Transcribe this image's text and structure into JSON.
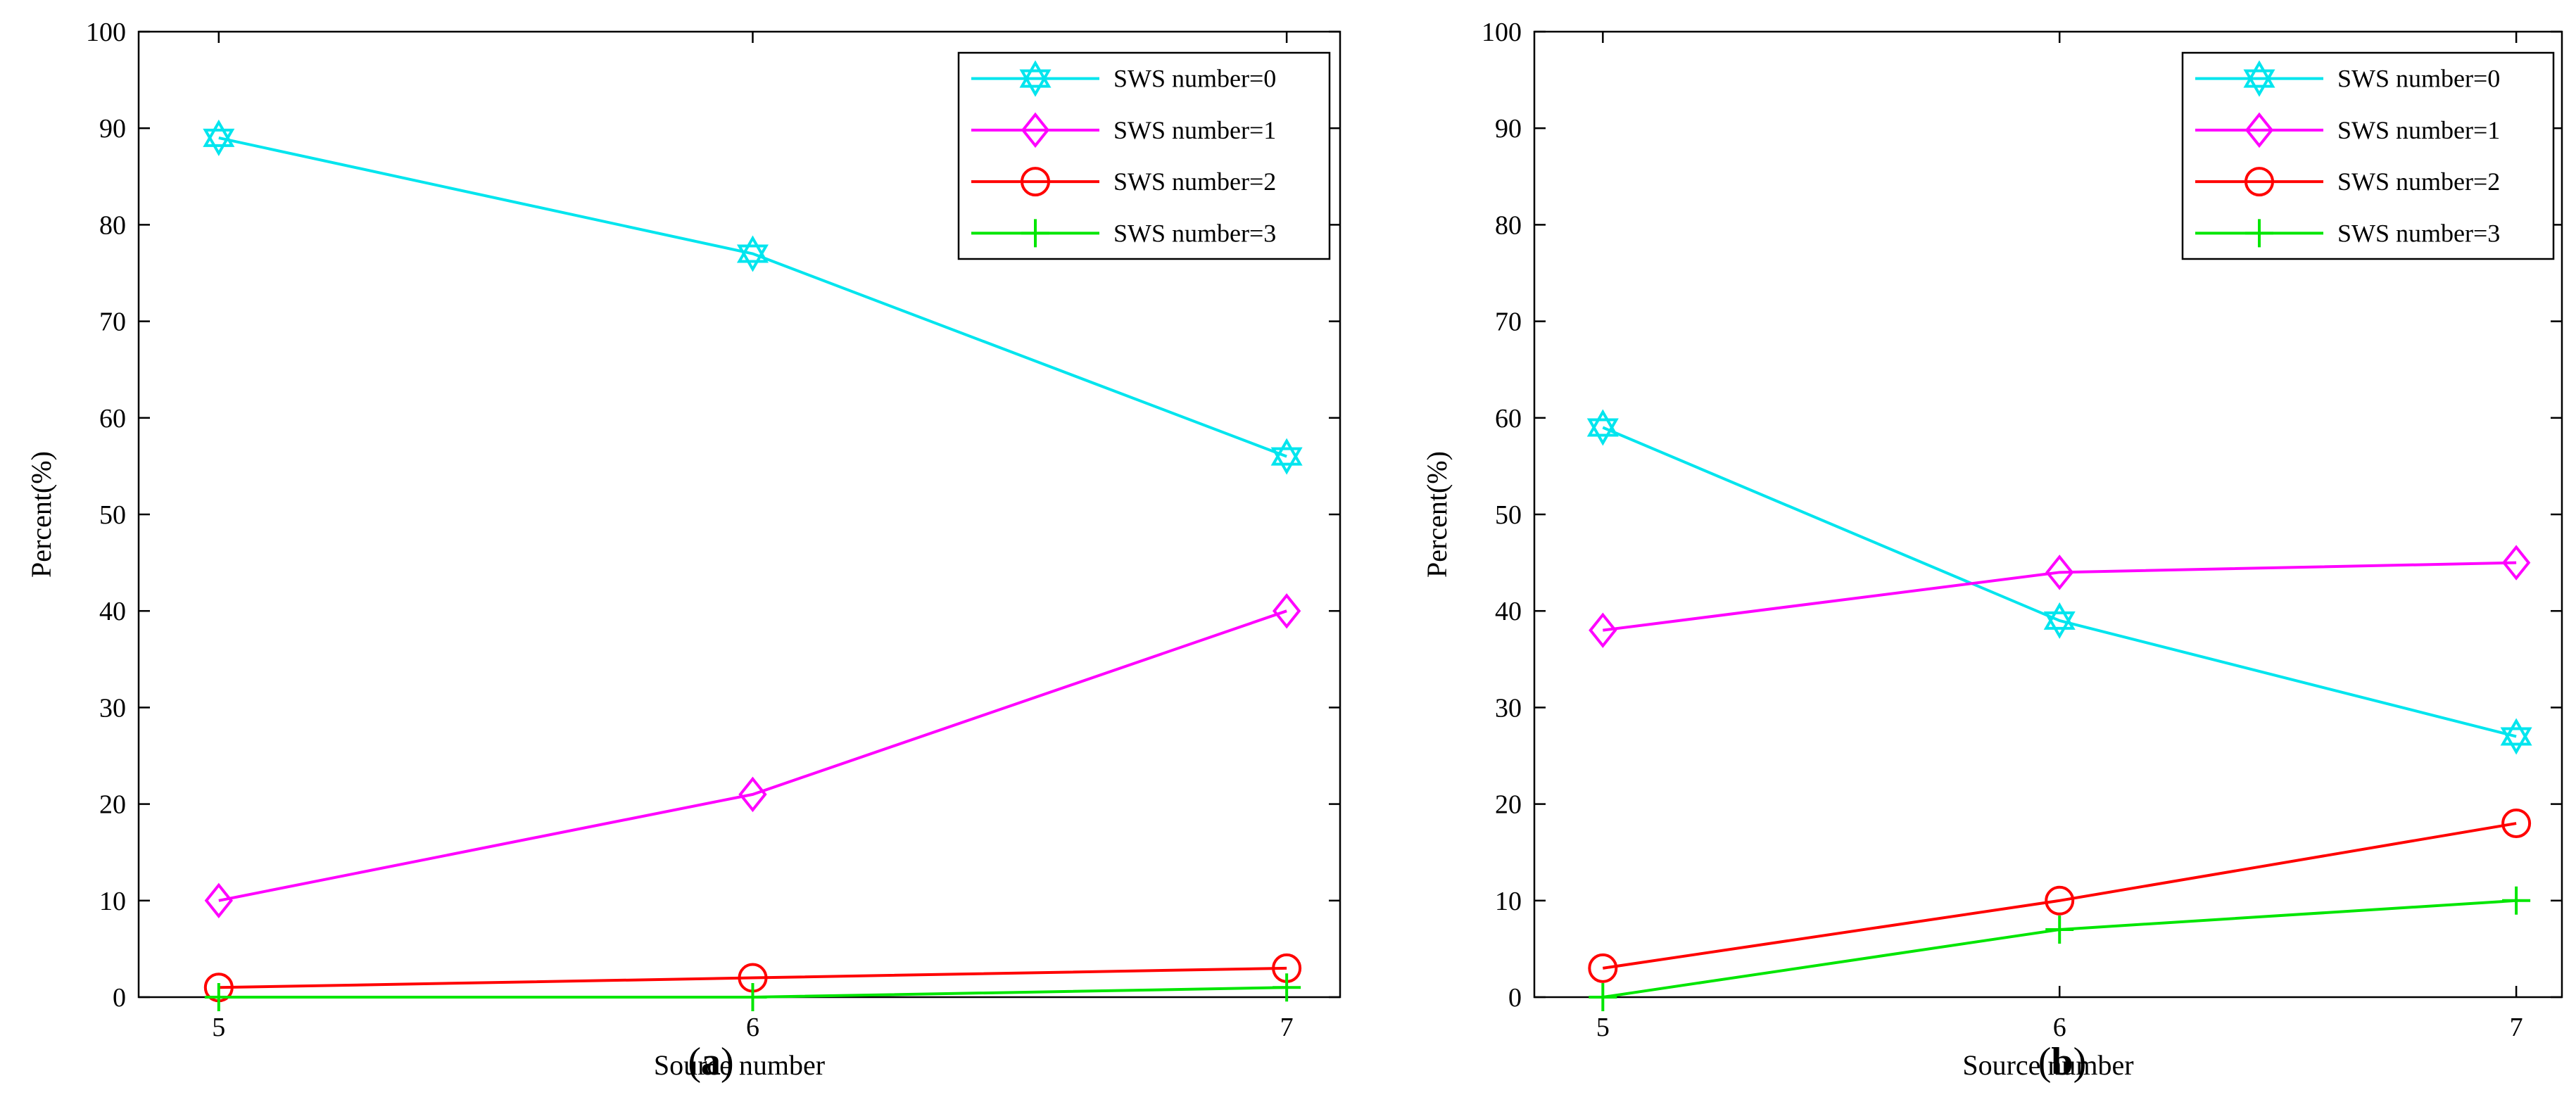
{
  "chart_data": [
    {
      "type": "line",
      "panel_label": "a",
      "xlabel": "Source number",
      "ylabel": "Percent(%)",
      "x": [
        5,
        6,
        7
      ],
      "xlim": [
        4.85,
        7.1
      ],
      "ylim": [
        0,
        100
      ],
      "yticks": [
        0,
        10,
        20,
        30,
        40,
        50,
        60,
        70,
        80,
        90,
        100
      ],
      "legend_position": "top-right",
      "series": [
        {
          "name": "SWS number=0",
          "color": "#00e5ee",
          "marker": "hexagram",
          "values": [
            89,
            77,
            56
          ]
        },
        {
          "name": "SWS number=1",
          "color": "#ff00ff",
          "marker": "diamond",
          "values": [
            10,
            21,
            40
          ]
        },
        {
          "name": "SWS number=2",
          "color": "#ff0000",
          "marker": "circle",
          "values": [
            1,
            2,
            3
          ]
        },
        {
          "name": "SWS number=3",
          "color": "#00e600",
          "marker": "plus",
          "values": [
            0,
            0,
            1
          ]
        }
      ]
    },
    {
      "type": "line",
      "panel_label": "b",
      "xlabel": "Source number",
      "ylabel": "Percent(%)",
      "x": [
        5,
        6,
        7
      ],
      "xlim": [
        4.85,
        7.1
      ],
      "ylim": [
        0,
        100
      ],
      "yticks": [
        0,
        10,
        20,
        30,
        40,
        50,
        60,
        70,
        80,
        90,
        100
      ],
      "legend_position": "top-right",
      "series": [
        {
          "name": "SWS number=0",
          "color": "#00e5ee",
          "marker": "hexagram",
          "values": [
            59,
            39,
            27
          ]
        },
        {
          "name": "SWS number=1",
          "color": "#ff00ff",
          "marker": "diamond",
          "values": [
            38,
            44,
            45
          ]
        },
        {
          "name": "SWS number=2",
          "color": "#ff0000",
          "marker": "circle",
          "values": [
            3,
            10,
            18
          ]
        },
        {
          "name": "SWS number=3",
          "color": "#00e600",
          "marker": "plus",
          "values": [
            0,
            7,
            10
          ]
        }
      ]
    }
  ]
}
